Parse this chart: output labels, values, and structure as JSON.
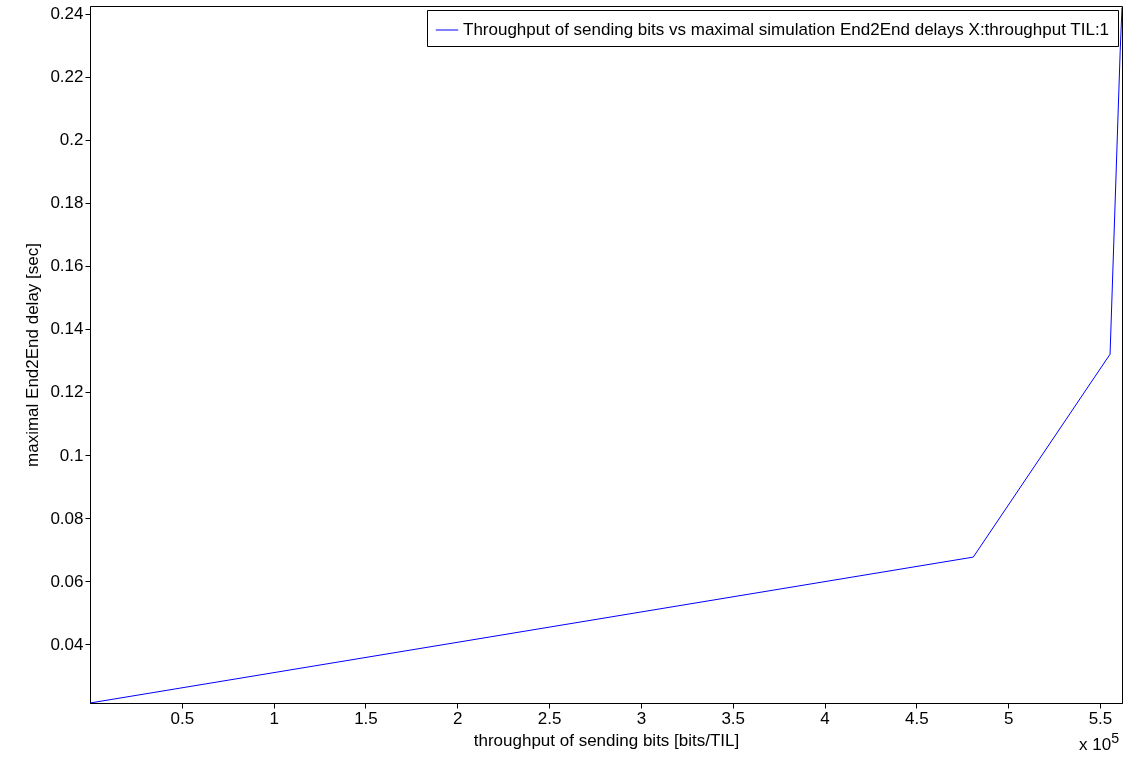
{
  "chart_data": {
    "type": "line",
    "xlabel": "throughput of sending bits [bits/TIL]",
    "ylabel": "maximal End2End delay [sec]",
    "x": [
      0,
      4.81,
      5.555,
      5.61,
      5.62
    ],
    "series": [
      {
        "name": "Throughput of sending bits vs maximal simulation End2End delays X:throughput TIL:1",
        "color": "#0000ff",
        "values": [
          0.0213,
          0.0676,
          0.132,
          0.228,
          0.242
        ]
      }
    ],
    "xlim": [
      0,
      5.62
    ],
    "xticks": [
      0.5,
      1,
      1.5,
      2,
      2.5,
      3,
      3.5,
      4,
      4.5,
      5,
      5.5
    ],
    "ylim": [
      0.0213,
      0.2425
    ],
    "yticks": [
      0.04,
      0.06,
      0.08,
      0.1,
      0.12,
      0.14,
      0.16,
      0.18,
      0.2,
      0.22,
      0.24
    ],
    "grid": false,
    "legend": "top right",
    "marker": "none",
    "line_style": "solid",
    "annotations": [
      "x 10$^{5}$"
    ]
  }
}
